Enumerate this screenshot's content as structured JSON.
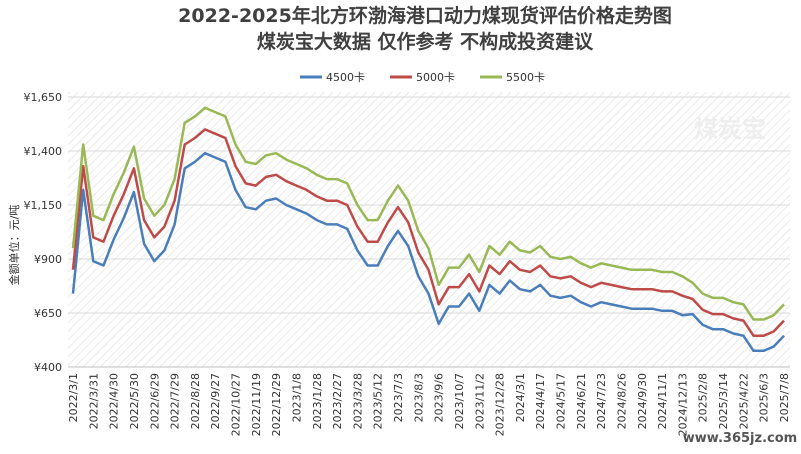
{
  "chart_data": {
    "type": "line",
    "title": "2022-2025年北方环渤海港口动力煤现货评估价格走势图",
    "subtitle": "煤炭宝大数据 仅作参考 不构成投资建议",
    "y_label": "金额单位：元/吨",
    "watermark": "煤炭宝",
    "source_mark": "www.365jz.com",
    "categories": [
      "2022/3/1",
      null,
      "2022/3/31",
      null,
      "2022/4/30",
      null,
      "2022/5/30",
      null,
      "2022/6/29",
      null,
      "2022/7/29",
      null,
      "2022/8/28",
      null,
      "2022/9/27",
      null,
      "2022/10/27",
      null,
      "2022/11/19",
      null,
      "2022/12/29",
      null,
      "2023/1/8",
      null,
      "2023/1/28",
      null,
      "2023/2/27",
      null,
      "2023/3/28",
      null,
      "2023/5/12",
      null,
      "2023/7/3",
      null,
      "2023/8/3",
      null,
      "2023/9/6",
      null,
      "2023/10/7",
      null,
      "2023/11/2",
      null,
      "2023/12/28",
      null,
      "2024/3/1",
      null,
      "2024/4/17",
      null,
      "2024/5/17",
      null,
      "2024/6/21",
      null,
      "2024/7/23",
      null,
      "2024/8/26",
      null,
      "2024/9/30",
      null,
      "2024/11/1",
      null,
      "2024/12/13",
      null,
      "2025/2/8",
      null,
      "2025/3/14",
      null,
      "2025/4/22",
      null,
      "2025/6/3",
      null,
      "2025/7/8"
    ],
    "series": [
      {
        "name": "4500卡",
        "color": "#4a7ebb",
        "values": [
          740,
          1220,
          890,
          870,
          990,
          1090,
          1210,
          970,
          890,
          940,
          1060,
          1320,
          1350,
          1390,
          1370,
          1350,
          1220,
          1140,
          1130,
          1170,
          1180,
          1150,
          1130,
          1110,
          1080,
          1060,
          1060,
          1040,
          940,
          870,
          870,
          960,
          1030,
          960,
          820,
          740,
          600,
          680,
          680,
          740,
          660,
          780,
          740,
          800,
          760,
          750,
          780,
          730,
          720,
          730,
          700,
          680,
          700,
          690,
          680,
          670,
          670,
          670,
          660,
          660,
          640,
          645,
          595,
          575,
          575,
          555,
          545,
          475,
          475,
          495,
          545
        ]
      },
      {
        "name": "5000卡",
        "color": "#be4b48",
        "values": [
          850,
          1330,
          1000,
          980,
          1100,
          1200,
          1320,
          1080,
          1000,
          1050,
          1170,
          1430,
          1460,
          1500,
          1480,
          1460,
          1330,
          1250,
          1240,
          1280,
          1290,
          1260,
          1240,
          1220,
          1190,
          1170,
          1170,
          1150,
          1050,
          980,
          980,
          1070,
          1140,
          1070,
          930,
          850,
          690,
          770,
          770,
          830,
          750,
          870,
          830,
          890,
          850,
          840,
          870,
          820,
          810,
          820,
          790,
          770,
          790,
          780,
          770,
          760,
          760,
          760,
          750,
          750,
          730,
          715,
          665,
          645,
          645,
          625,
          615,
          545,
          545,
          565,
          615
        ]
      },
      {
        "name": "5500卡",
        "color": "#98b954",
        "values": [
          950,
          1430,
          1100,
          1080,
          1200,
          1300,
          1420,
          1180,
          1100,
          1150,
          1270,
          1530,
          1560,
          1600,
          1580,
          1560,
          1430,
          1350,
          1340,
          1380,
          1390,
          1360,
          1340,
          1320,
          1290,
          1270,
          1270,
          1250,
          1150,
          1080,
          1080,
          1170,
          1240,
          1170,
          1030,
          950,
          780,
          860,
          860,
          920,
          840,
          960,
          920,
          980,
          940,
          930,
          960,
          910,
          900,
          910,
          880,
          860,
          880,
          870,
          860,
          850,
          850,
          850,
          840,
          840,
          820,
          790,
          740,
          720,
          720,
          700,
          690,
          620,
          620,
          640,
          690
        ]
      }
    ],
    "ylim": [
      400,
      1650
    ],
    "yticks": [
      {
        "value": 400,
        "label": "¥400"
      },
      {
        "value": 650,
        "label": "¥650"
      },
      {
        "value": 900,
        "label": "¥900"
      },
      {
        "value": 1150,
        "label": "¥1,150"
      },
      {
        "value": 1400,
        "label": "¥1,400"
      },
      {
        "value": 1650,
        "label": "¥1,650"
      }
    ],
    "grid": true,
    "legend": "top"
  }
}
